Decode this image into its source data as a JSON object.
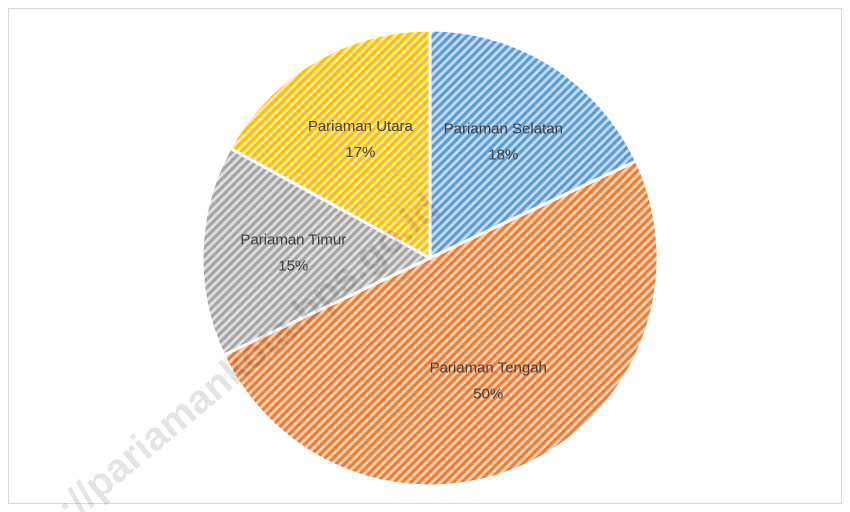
{
  "chart_data": {
    "type": "pie",
    "categories": [
      "Pariaman Selatan",
      "Pariaman Tengah",
      "Pariaman Timur",
      "Pariaman Utara"
    ],
    "values": [
      18,
      50,
      15,
      17
    ],
    "value_labels": [
      "18%",
      "50%",
      "15%",
      "17%"
    ],
    "colors": [
      "#5b9bd5",
      "#ed7d31",
      "#a5a5a5",
      "#ffc000"
    ],
    "watermark": "://pariamankota.bps.go.id"
  }
}
